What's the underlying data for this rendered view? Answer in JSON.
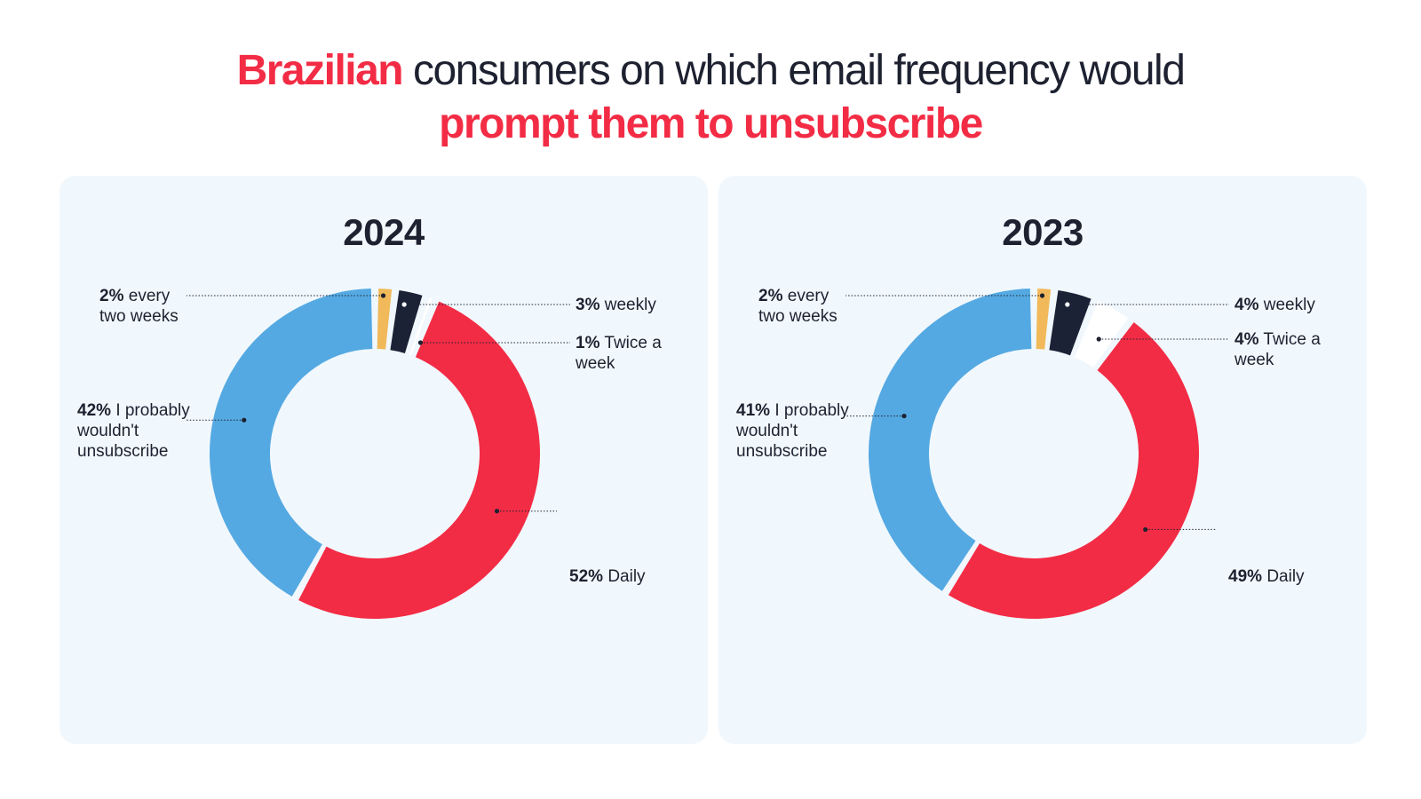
{
  "title": {
    "accent_line1": "Brazilian",
    "rest_line1": " consumers on which email frequency would",
    "accent_line2": "prompt them to unsubscribe"
  },
  "colors": {
    "daily": "#f32c45",
    "wouldnt": "#55a9e2",
    "every_two_weeks": "#f1b95a",
    "weekly": "#1b2236",
    "twice_a_week": "#ffffff",
    "panel": "#f1f8fd",
    "text": "#1d2130"
  },
  "chart_data": [
    {
      "type": "pie",
      "title": "2024",
      "categories": [
        "every two weeks",
        "weekly",
        "Twice a week",
        "Daily",
        "I probably wouldn't unsubscribe"
      ],
      "values": [
        2,
        3,
        1,
        52,
        42
      ],
      "labels": [
        {
          "pct": "2%",
          "text": "every\ntwo weeks"
        },
        {
          "pct": "3%",
          "text": "weekly"
        },
        {
          "pct": "1%",
          "text": "Twice a\nweek"
        },
        {
          "pct": "52%",
          "text": "Daily"
        },
        {
          "pct": "42%",
          "text": "I probably\nwouldn't\nunsubscribe"
        }
      ]
    },
    {
      "type": "pie",
      "title": "2023",
      "categories": [
        "every two weeks",
        "weekly",
        "Twice a week",
        "Daily",
        "I probably wouldn't unsubscribe"
      ],
      "values": [
        2,
        4,
        4,
        49,
        41
      ],
      "labels": [
        {
          "pct": "2%",
          "text": "every\ntwo weeks"
        },
        {
          "pct": "4%",
          "text": "weekly"
        },
        {
          "pct": "4%",
          "text": "Twice a\nweek"
        },
        {
          "pct": "49%",
          "text": "Daily"
        },
        {
          "pct": "41%",
          "text": "I probably\nwouldn't\nunsubscribe"
        }
      ]
    }
  ]
}
